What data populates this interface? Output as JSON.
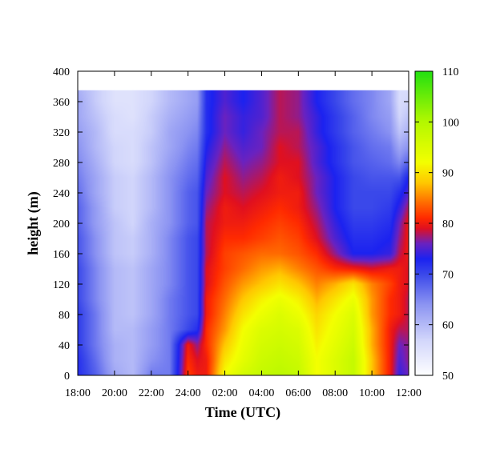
{
  "chart_data": {
    "type": "heatmap",
    "xlabel": "Time (UTC)",
    "ylabel": "height (m)",
    "x_tick_labels": [
      "18:00",
      "20:00",
      "22:00",
      "24:00",
      "02:00",
      "04:00",
      "06:00",
      "08:00",
      "10:00",
      "12:00"
    ],
    "x_ticks_hours": [
      0,
      2,
      4,
      6,
      8,
      10,
      12,
      14,
      16,
      18
    ],
    "xlim_hours_since_18utc": [
      0,
      18
    ],
    "y_ticks": [
      0,
      40,
      80,
      120,
      160,
      200,
      240,
      280,
      320,
      360,
      400
    ],
    "ylim": [
      0,
      400
    ],
    "data_top_height": 375,
    "colorbar": {
      "ticks": [
        50,
        60,
        70,
        80,
        90,
        100,
        110
      ],
      "range": [
        50,
        110
      ],
      "stops": [
        {
          "value": 50,
          "color": "#ffffff"
        },
        {
          "value": 57,
          "color": "#d2d6fb"
        },
        {
          "value": 64,
          "color": "#8c94f2"
        },
        {
          "value": 70,
          "color": "#3a48ea"
        },
        {
          "value": 73,
          "color": "#1c22f0"
        },
        {
          "value": 76,
          "color": "#6a22c0"
        },
        {
          "value": 79,
          "color": "#e01020"
        },
        {
          "value": 81,
          "color": "#ff2a00"
        },
        {
          "value": 84,
          "color": "#ff6a00"
        },
        {
          "value": 88,
          "color": "#ffc800"
        },
        {
          "value": 92,
          "color": "#f4ff00"
        },
        {
          "value": 100,
          "color": "#b4f800"
        },
        {
          "value": 110,
          "color": "#22e010"
        }
      ]
    },
    "grid_heights": [
      0,
      20,
      40,
      60,
      80,
      100,
      120,
      140,
      160,
      180,
      200,
      220,
      240,
      260,
      280,
      300,
      320,
      340,
      360,
      375
    ],
    "grid_times": [
      0,
      1,
      2,
      3,
      4,
      5,
      6,
      6.5,
      7,
      8,
      9,
      10,
      11,
      12,
      13,
      14,
      15,
      16,
      17,
      17.5,
      18
    ],
    "grid_values": [
      [
        72,
        68,
        62,
        60,
        66,
        66,
        82,
        80,
        80,
        92,
        96,
        98,
        99,
        98,
        92,
        95,
        98,
        88,
        80,
        74,
        76
      ],
      [
        72,
        67,
        61,
        60,
        64,
        66,
        81,
        79,
        80,
        90,
        94,
        97,
        98,
        97,
        92,
        95,
        98,
        88,
        80,
        75,
        77
      ],
      [
        71,
        66,
        61,
        60,
        63,
        66,
        80,
        77,
        81,
        88,
        93,
        96,
        97,
        96,
        91,
        94,
        97,
        87,
        80,
        76,
        77
      ],
      [
        71,
        66,
        60,
        60,
        63,
        66,
        70,
        72,
        81,
        86,
        92,
        95,
        96,
        95,
        90,
        93,
        96,
        87,
        80,
        78,
        78
      ],
      [
        71,
        66,
        60,
        59,
        62,
        66,
        69,
        70,
        80,
        85,
        90,
        93,
        95,
        93,
        89,
        92,
        95,
        86,
        81,
        80,
        78
      ],
      [
        70,
        65,
        60,
        59,
        62,
        66,
        69,
        70,
        80,
        84,
        88,
        91,
        93,
        91,
        87,
        90,
        93,
        86,
        81,
        80,
        78
      ],
      [
        70,
        65,
        60,
        59,
        62,
        65,
        69,
        70,
        79,
        83,
        86,
        88,
        90,
        88,
        85,
        87,
        90,
        85,
        82,
        80,
        79
      ],
      [
        70,
        65,
        60,
        59,
        62,
        65,
        69,
        70,
        79,
        82,
        84,
        86,
        87,
        85,
        83,
        81,
        80,
        79,
        80,
        80,
        79
      ],
      [
        69,
        64,
        59,
        58,
        61,
        65,
        69,
        70,
        78,
        82,
        83,
        84,
        84,
        83,
        81,
        77,
        73,
        73,
        74,
        78,
        80
      ],
      [
        69,
        64,
        59,
        58,
        61,
        65,
        69,
        70,
        78,
        81,
        81,
        82,
        83,
        82,
        79,
        75,
        72,
        72,
        73,
        77,
        80
      ],
      [
        68,
        63,
        59,
        57,
        61,
        64,
        68,
        69,
        78,
        80,
        80,
        81,
        82,
        81,
        78,
        74,
        71,
        71,
        72,
        76,
        80
      ],
      [
        68,
        63,
        58,
        57,
        60,
        64,
        68,
        69,
        77,
        80,
        79,
        80,
        81,
        80,
        77,
        73,
        70,
        70,
        71,
        74,
        78
      ],
      [
        67,
        62,
        58,
        57,
        60,
        64,
        68,
        69,
        76,
        79,
        78,
        79,
        80,
        80,
        76,
        73,
        70,
        70,
        70,
        72,
        75
      ],
      [
        66,
        62,
        58,
        57,
        60,
        64,
        67,
        68,
        75,
        79,
        77,
        78,
        80,
        79,
        76,
        73,
        70,
        69,
        69,
        69,
        73
      ],
      [
        65,
        61,
        57,
        56,
        59,
        63,
        66,
        67,
        74,
        78,
        76,
        77,
        79,
        79,
        75,
        72,
        69,
        68,
        67,
        65,
        68
      ],
      [
        64,
        60,
        57,
        56,
        59,
        62,
        65,
        66,
        73,
        77,
        75,
        76,
        79,
        78,
        75,
        72,
        69,
        67,
        66,
        62,
        64
      ],
      [
        63,
        60,
        56,
        56,
        58,
        62,
        64,
        65,
        72,
        76,
        74,
        76,
        78,
        78,
        74,
        71,
        68,
        66,
        64,
        59,
        61
      ],
      [
        62,
        59,
        56,
        55,
        58,
        61,
        63,
        64,
        72,
        76,
        74,
        75,
        78,
        77,
        74,
        71,
        68,
        65,
        63,
        57,
        59
      ],
      [
        62,
        58,
        55,
        55,
        57,
        60,
        62,
        63,
        72,
        75,
        73,
        75,
        78,
        77,
        73,
        70,
        67,
        65,
        62,
        56,
        57
      ],
      [
        61,
        58,
        55,
        55,
        57,
        60,
        62,
        63,
        72,
        75,
        73,
        75,
        78,
        77,
        73,
        70,
        67,
        65,
        62,
        56,
        56
      ]
    ]
  }
}
